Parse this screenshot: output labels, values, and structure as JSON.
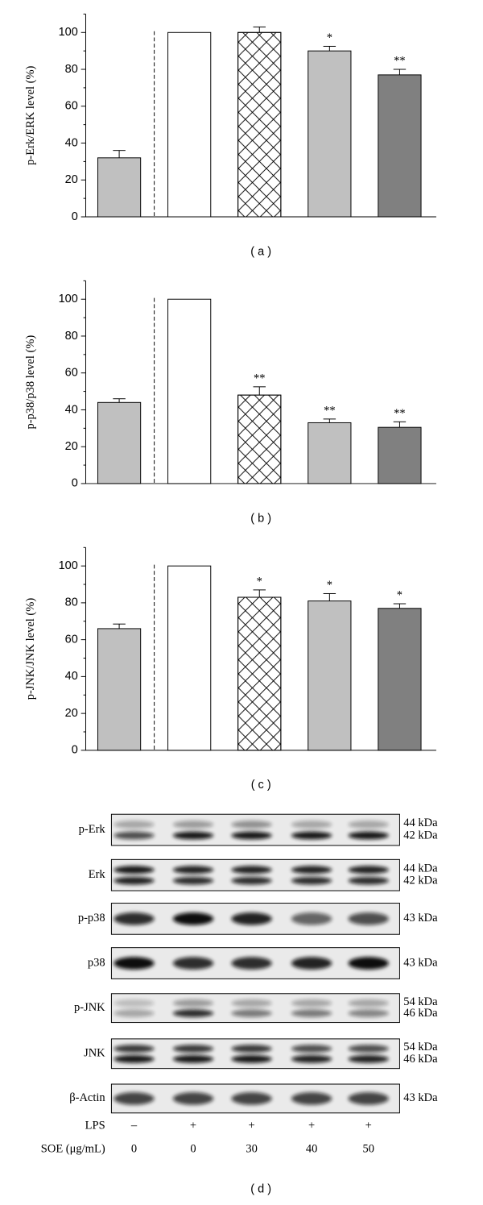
{
  "chart_data": [
    {
      "type": "bar",
      "ylabel": "p-Erk/ERK level (%)",
      "caption": "( a )",
      "categories": [
        null,
        null,
        null,
        null,
        null
      ],
      "values": [
        32,
        100,
        100,
        90,
        77
      ],
      "errors": [
        4,
        0,
        3,
        2.5,
        3
      ],
      "annotations": [
        null,
        null,
        null,
        "*",
        "**"
      ],
      "colors": [
        "#c0c0c0",
        "#ffffff",
        "#ffffff",
        "#c0c0c0",
        "#808080"
      ],
      "hatch": [
        false,
        false,
        true,
        false,
        false
      ],
      "ylim": [
        0,
        110
      ],
      "yticks": [
        0,
        20,
        40,
        60,
        80,
        100
      ]
    },
    {
      "type": "bar",
      "ylabel": "p-p38/p38 level (%)",
      "caption": "( b )",
      "categories": [
        null,
        null,
        null,
        null,
        null
      ],
      "values": [
        44,
        100,
        48,
        33,
        30.5
      ],
      "errors": [
        2,
        0,
        4.5,
        2,
        3
      ],
      "annotations": [
        null,
        null,
        "**",
        "**",
        "**"
      ],
      "colors": [
        "#c0c0c0",
        "#ffffff",
        "#ffffff",
        "#c0c0c0",
        "#808080"
      ],
      "hatch": [
        false,
        false,
        true,
        false,
        false
      ],
      "ylim": [
        0,
        110
      ],
      "yticks": [
        0,
        20,
        40,
        60,
        80,
        100
      ]
    },
    {
      "type": "bar",
      "ylabel": "p-JNK/JNK level (%)",
      "caption": "( c )",
      "categories": [
        null,
        null,
        null,
        null,
        null
      ],
      "values": [
        66,
        100,
        83,
        81,
        77
      ],
      "errors": [
        2.5,
        0,
        4,
        4,
        2.5
      ],
      "annotations": [
        null,
        null,
        "*",
        "*",
        "*"
      ],
      "colors": [
        "#c0c0c0",
        "#ffffff",
        "#ffffff",
        "#c0c0c0",
        "#808080"
      ],
      "hatch": [
        false,
        false,
        true,
        false,
        false
      ],
      "ylim": [
        0,
        110
      ],
      "yticks": [
        0,
        20,
        40,
        60,
        80,
        100
      ]
    }
  ],
  "blot": {
    "rows": [
      {
        "label": "p-Erk",
        "kda": [
          "44 kDa",
          "42 kDa"
        ]
      },
      {
        "label": "Erk",
        "kda": [
          "44 kDa",
          "42 kDa"
        ]
      },
      {
        "label": "p-p38",
        "kda": [
          "43 kDa"
        ]
      },
      {
        "label": "p38",
        "kda": [
          "43 kDa"
        ]
      },
      {
        "label": "p-JNK",
        "kda": [
          "54 kDa",
          "46 kDa"
        ]
      },
      {
        "label": "JNK",
        "kda": [
          "54 kDa",
          "46 kDa"
        ]
      },
      {
        "label": "β-Actin",
        "kda": [
          "43 kDa"
        ]
      }
    ],
    "conditions": [
      {
        "label": "LPS",
        "values": [
          "–",
          "+",
          "+",
          "+",
          "+"
        ]
      },
      {
        "label": "SOE (μg/mL)",
        "values": [
          "0",
          "0",
          "30",
          "40",
          "50"
        ]
      }
    ],
    "caption": "( d )"
  }
}
